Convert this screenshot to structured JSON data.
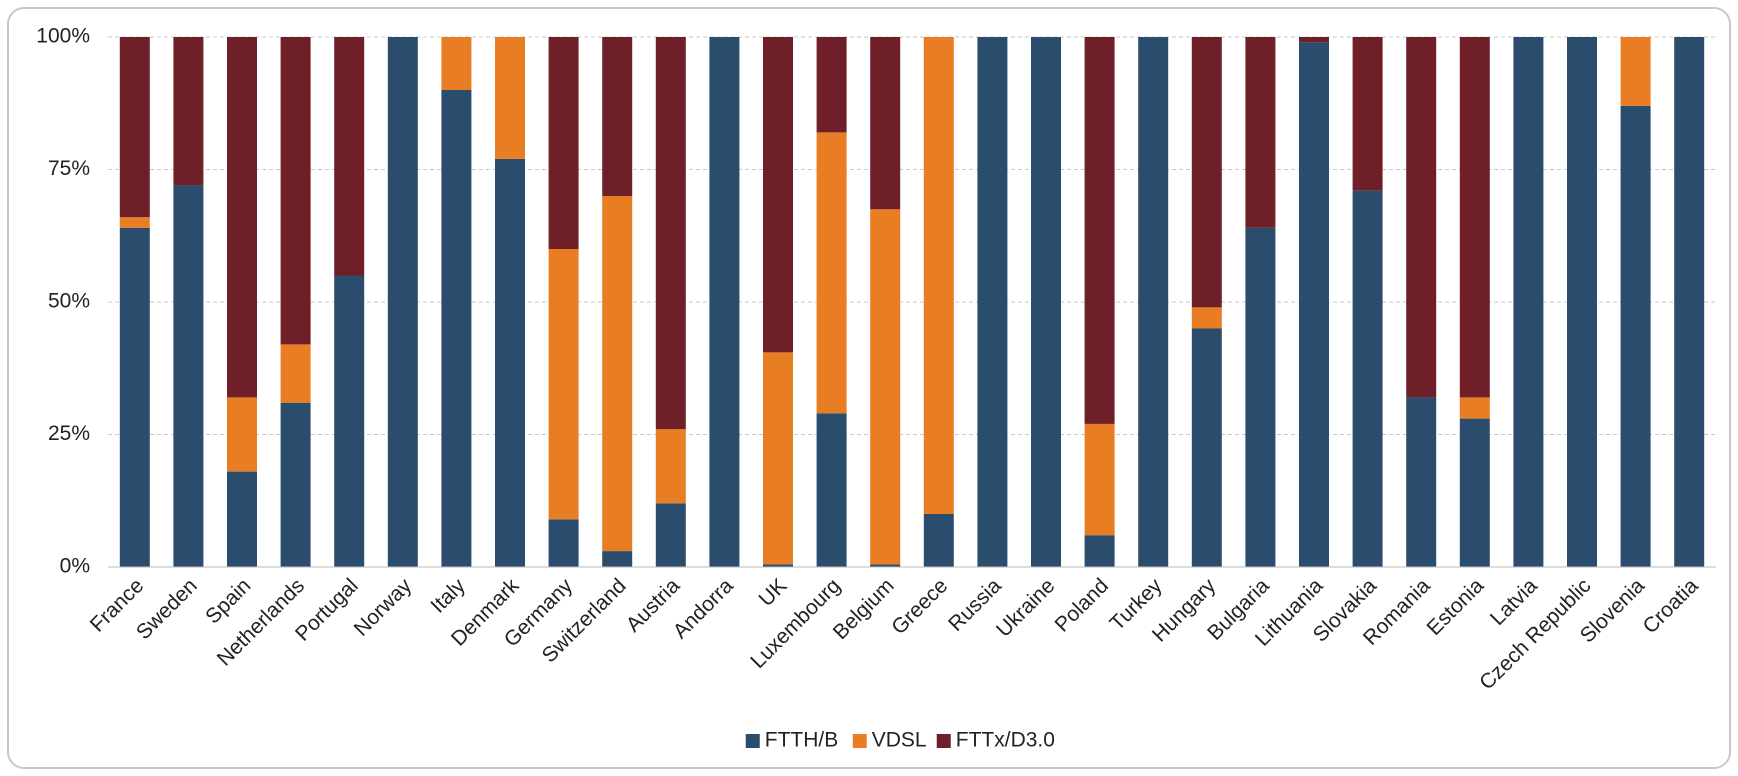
{
  "chart_data": {
    "type": "stacked_bar",
    "categories": [
      "France",
      "Sweden",
      "Spain",
      "Netherlands",
      "Portugal",
      "Norway",
      "Italy",
      "Denmark",
      "Germany",
      "Switzerland",
      "Austria",
      "Andorra",
      "UK",
      "Luxembourg",
      "Belgium",
      "Greece",
      "Russia",
      "Ukraine",
      "Poland",
      "Turkey",
      "Hungary",
      "Bulgaria",
      "Lithuania",
      "Slovakia",
      "Romania",
      "Estonia",
      "Latvia",
      "Czech Republic",
      "Slovenia",
      "Croatia"
    ],
    "series": [
      {
        "name": "FTTH/B",
        "color": "#2a4d6e",
        "values": [
          64,
          72,
          18,
          31,
          55,
          100,
          90,
          77,
          9,
          3,
          12,
          100,
          0.5,
          29,
          0.5,
          10,
          100,
          100,
          6,
          100,
          45,
          64,
          99,
          71,
          32,
          28,
          100,
          100,
          87,
          100
        ]
      },
      {
        "name": "VDSL",
        "color": "#e87d24",
        "values": [
          2,
          0,
          14,
          11,
          0,
          0,
          10,
          23,
          51,
          67,
          14,
          0,
          40,
          53,
          67,
          90,
          0,
          0,
          21,
          0,
          4,
          0,
          0,
          0,
          0,
          4,
          0,
          0,
          13,
          0
        ]
      },
      {
        "name": "FTTx/D3.0",
        "color": "#6e1f28",
        "values": [
          34,
          28,
          68,
          58,
          45,
          0,
          0,
          0,
          40,
          30,
          74,
          0,
          59.5,
          18,
          32.5,
          0,
          0,
          0,
          73,
          0,
          51,
          36,
          1,
          29,
          68,
          68,
          0,
          0,
          0,
          0
        ]
      }
    ],
    "ylim": [
      0,
      100
    ],
    "yticks": [
      {
        "value": 0,
        "label": "0%"
      },
      {
        "value": 25,
        "label": "25%"
      },
      {
        "value": 50,
        "label": "50%"
      },
      {
        "value": 75,
        "label": "75%"
      },
      {
        "value": 100,
        "label": "100%"
      }
    ],
    "grid": true,
    "legend": "bottom"
  }
}
